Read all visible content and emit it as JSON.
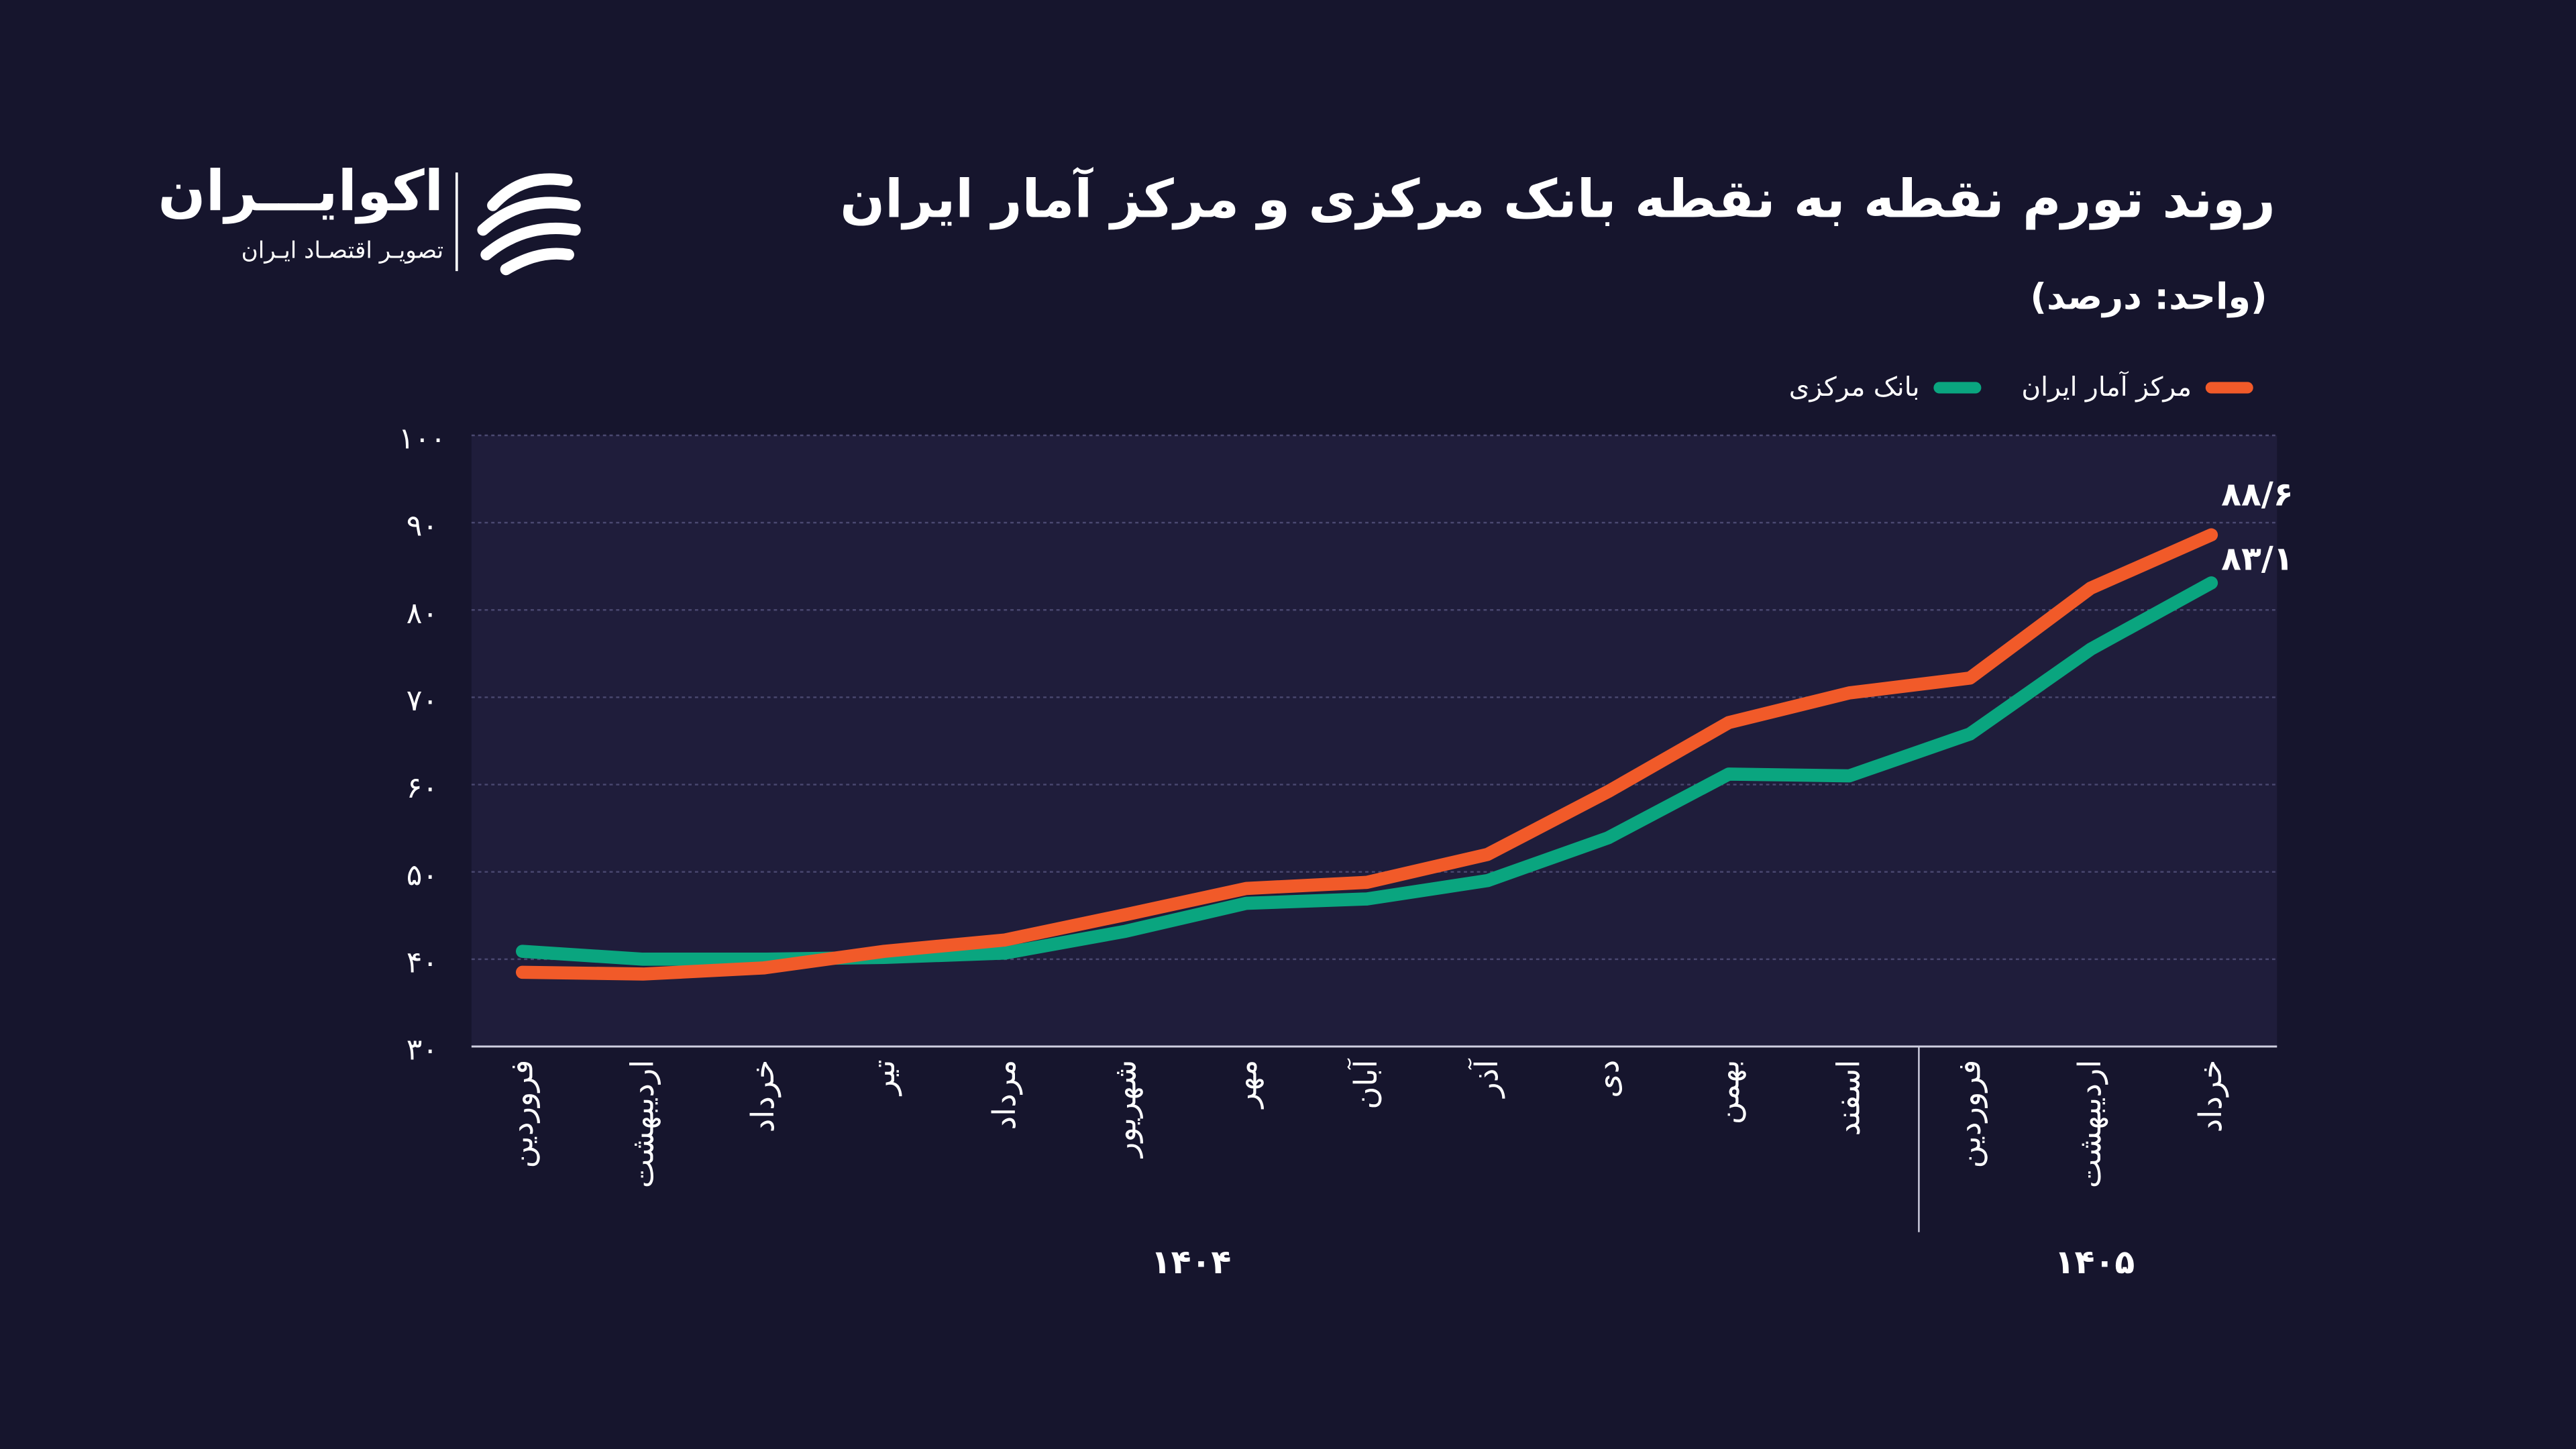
{
  "logo": {
    "name": "اکوایـــران",
    "tagline": "تصویـر اقتصـاد ایـران"
  },
  "chart_data": {
    "type": "line",
    "title": "روند تورم نقطه به نقطه بانک مرکزی و مرکز آمار ایران",
    "subtitle": "(واحد: درصد)",
    "categories": [
      "فروردین",
      "اردیبهشت",
      "خرداد",
      "تیر",
      "مرداد",
      "شهریور",
      "مهر",
      "آبان",
      "آذر",
      "دی",
      "بهمن",
      "اسفند",
      "فروردین",
      "اردیبهشت",
      "خرداد"
    ],
    "year_labels": [
      "۱۴۰۴",
      "۱۴۰۵"
    ],
    "series": [
      {
        "name": "مرکز آمار ایران",
        "color": "#f15a29",
        "values": [
          38.5,
          38.3,
          39.0,
          40.9,
          42.2,
          45.1,
          48.1,
          48.8,
          52.0,
          59.2,
          67.1,
          70.5,
          72.2,
          82.5,
          88.6
        ],
        "value_labels": [
          null,
          null,
          null,
          null,
          null,
          null,
          null,
          null,
          null,
          null,
          null,
          null,
          null,
          null,
          "۸۸/۶"
        ]
      },
      {
        "name": "بانک مرکزی",
        "color": "#0aa57f",
        "values": [
          40.9,
          40.0,
          40.0,
          40.2,
          40.7,
          43.2,
          46.4,
          46.9,
          49.0,
          53.9,
          61.2,
          61.0,
          65.8,
          75.5,
          83.1
        ],
        "value_labels": [
          null,
          null,
          null,
          null,
          null,
          null,
          null,
          null,
          null,
          null,
          null,
          null,
          null,
          null,
          "۸۳/۱"
        ]
      }
    ],
    "ylim": [
      30,
      100
    ],
    "yticks": [
      {
        "value": 30,
        "label": "۳۰"
      },
      {
        "value": 40,
        "label": "۴۰"
      },
      {
        "value": 50,
        "label": "۵۰"
      },
      {
        "value": 60,
        "label": "۶۰"
      },
      {
        "value": 70,
        "label": "۷۰"
      },
      {
        "value": 80,
        "label": "۸۰"
      },
      {
        "value": 90,
        "label": "۹۰"
      },
      {
        "value": 100,
        "label": "۱۰۰"
      }
    ],
    "grid": true
  }
}
